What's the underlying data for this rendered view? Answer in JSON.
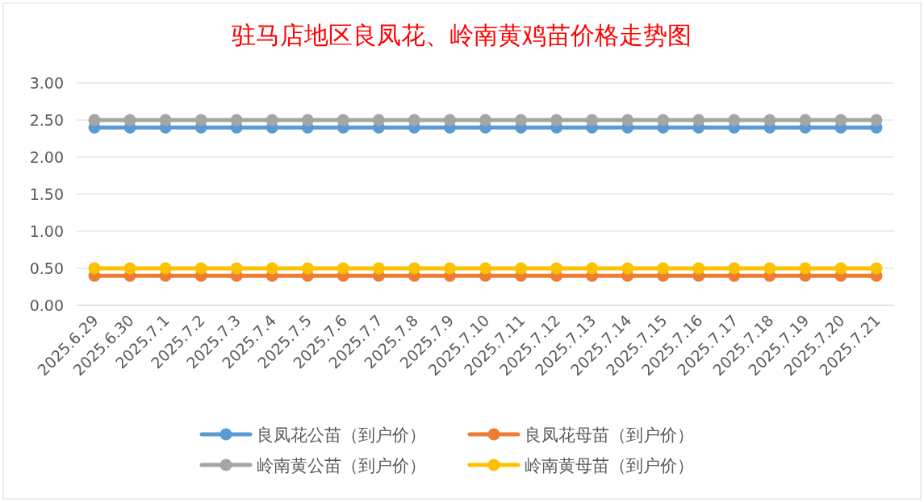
{
  "chart_data": {
    "type": "line",
    "title": "驻马店地区良凤花、岭南黄鸡苗价格走势图",
    "categories": [
      "2025.6.29",
      "2025.6.30",
      "2025.7.1",
      "2025.7.2",
      "2025.7.3",
      "2025.7.4",
      "2025.7.5",
      "2025.7.6",
      "2025.7.7",
      "2025.7.8",
      "2025.7.9",
      "2025.7.10",
      "2025.7.11",
      "2025.7.12",
      "2025.7.13",
      "2025.7.14",
      "2025.7.15",
      "2025.7.16",
      "2025.7.17",
      "2025.7.18",
      "2025.7.19",
      "2025.7.20",
      "2025.7.21"
    ],
    "series": [
      {
        "name": "良凤花公苗（到户价）",
        "color": "#5b9bd5",
        "values": [
          2.4,
          2.4,
          2.4,
          2.4,
          2.4,
          2.4,
          2.4,
          2.4,
          2.4,
          2.4,
          2.4,
          2.4,
          2.4,
          2.4,
          2.4,
          2.4,
          2.4,
          2.4,
          2.4,
          2.4,
          2.4,
          2.4,
          2.4
        ]
      },
      {
        "name": "良凤花母苗（到户价）",
        "color": "#ed7d31",
        "values": [
          0.4,
          0.4,
          0.4,
          0.4,
          0.4,
          0.4,
          0.4,
          0.4,
          0.4,
          0.4,
          0.4,
          0.4,
          0.4,
          0.4,
          0.4,
          0.4,
          0.4,
          0.4,
          0.4,
          0.4,
          0.4,
          0.4,
          0.4
        ]
      },
      {
        "name": "岭南黄公苗（到户价）",
        "color": "#a5a5a5",
        "values": [
          2.5,
          2.5,
          2.5,
          2.5,
          2.5,
          2.5,
          2.5,
          2.5,
          2.5,
          2.5,
          2.5,
          2.5,
          2.5,
          2.5,
          2.5,
          2.5,
          2.5,
          2.5,
          2.5,
          2.5,
          2.5,
          2.5,
          2.5
        ]
      },
      {
        "name": "岭南黄母苗（到户价）",
        "color": "#ffc000",
        "values": [
          0.5,
          0.5,
          0.5,
          0.5,
          0.5,
          0.5,
          0.5,
          0.5,
          0.5,
          0.5,
          0.5,
          0.5,
          0.5,
          0.5,
          0.5,
          0.5,
          0.5,
          0.5,
          0.5,
          0.5,
          0.5,
          0.5,
          0.5
        ]
      }
    ],
    "ylim": [
      0,
      3
    ],
    "yticks": [
      {
        "value": 0,
        "label": "0.00"
      },
      {
        "value": 0.5,
        "label": "0.50"
      },
      {
        "value": 1,
        "label": "1.00"
      },
      {
        "value": 1.5,
        "label": "1.50"
      },
      {
        "value": 2,
        "label": "2.00"
      },
      {
        "value": 2.5,
        "label": "2.50"
      },
      {
        "value": 3,
        "label": "3.00"
      }
    ],
    "grid": "y",
    "legend": "bottom",
    "marker": "circle",
    "line_style": "solid"
  }
}
